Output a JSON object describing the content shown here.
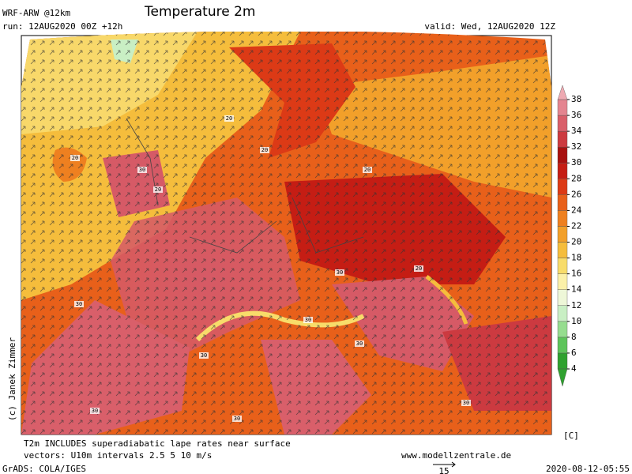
{
  "header": {
    "model": "WRF-ARW @12km",
    "run": "run: 12AUG2020 00Z +12h",
    "title": "Temperature 2m",
    "valid": "valid: Wed, 12AUG2020 12Z"
  },
  "colorbar": {
    "ticks": [
      4,
      6,
      8,
      10,
      12,
      14,
      16,
      18,
      20,
      22,
      24,
      26,
      28,
      30,
      32,
      34,
      36,
      38
    ],
    "colors": [
      "#2fa12f",
      "#5dc45a",
      "#96dd8f",
      "#c9efc4",
      "#eef7d8",
      "#fbf0a8",
      "#f8dc6a",
      "#f5bd3c",
      "#f2a02a",
      "#ee8020",
      "#e8601a",
      "#dc3a16",
      "#c51d14",
      "#a8100f",
      "#cc3a40",
      "#d95f6a",
      "#e48590",
      "#eeaab2"
    ],
    "unit": "[C]"
  },
  "contour_labels": [
    20,
    20,
    20,
    20,
    20,
    20,
    30,
    30,
    30,
    30,
    30,
    30,
    30,
    30,
    30
  ],
  "footer": {
    "note": "T2m INCLUDES superadiabatic lape rates near surface",
    "vectors": "vectors: U10m intervals 2.5 5 10 m/s",
    "site": "www.modellzentrale.de",
    "grads": "GrADS: COLA/IGES",
    "timestamp": "2020-08-12-05:55",
    "arrow_scale": "15",
    "credit": "(c) Janek Zimmer"
  }
}
